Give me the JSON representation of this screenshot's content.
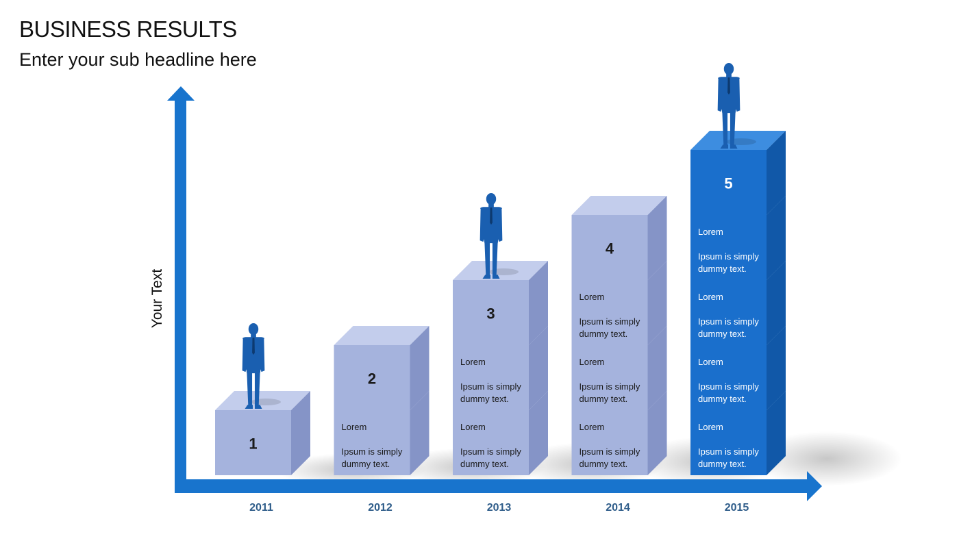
{
  "header": {
    "title": "BUSINESS RESULTS",
    "subtitle": "Enter your sub headline here"
  },
  "axis": {
    "ylabel": "Your Text"
  },
  "colors": {
    "axis": "#1874cd",
    "year_label": "#2f5d8a",
    "pale_front": "#a5b3dd",
    "pale_top": "#c3cdec",
    "pale_side": "#8594c7",
    "bright_front": "#1a6fcc",
    "bright_top": "#3d8de0",
    "bright_side": "#1158a8",
    "person": "#1a5fb0"
  },
  "columns": [
    {
      "year": "2011",
      "number": "1",
      "stack": 1,
      "style": "pale",
      "person": true,
      "blocks": []
    },
    {
      "year": "2012",
      "number": "2",
      "stack": 2,
      "style": "pale",
      "person": false,
      "blocks": [
        {
          "title": "Lorem",
          "text1": "Ipsum is simply",
          "text2": "dummy text."
        }
      ]
    },
    {
      "year": "2013",
      "number": "3",
      "stack": 3,
      "style": "pale",
      "person": true,
      "blocks": [
        {
          "title": "Lorem",
          "text1": "Ipsum is simply",
          "text2": "dummy text."
        },
        {
          "title": "Lorem",
          "text1": "Ipsum is simply",
          "text2": "dummy text."
        }
      ]
    },
    {
      "year": "2014",
      "number": "4",
      "stack": 4,
      "style": "pale",
      "person": false,
      "blocks": [
        {
          "title": "Lorem",
          "text1": "Ipsum is simply",
          "text2": "dummy text."
        },
        {
          "title": "Lorem",
          "text1": "Ipsum is simply",
          "text2": "dummy text."
        },
        {
          "title": "Lorem",
          "text1": "Ipsum is simply",
          "text2": "dummy text."
        }
      ]
    },
    {
      "year": "2015",
      "number": "5",
      "stack": 5,
      "style": "bright",
      "person": true,
      "blocks": [
        {
          "title": "Lorem",
          "text1": "Ipsum is simply",
          "text2": "dummy text."
        },
        {
          "title": "Lorem",
          "text1": "Ipsum is simply",
          "text2": "dummy text."
        },
        {
          "title": "Lorem",
          "text1": "Ipsum is simply",
          "text2": "dummy text."
        },
        {
          "title": "Lorem",
          "text1": "Ipsum is simply",
          "text2": "dummy text."
        }
      ]
    }
  ]
}
